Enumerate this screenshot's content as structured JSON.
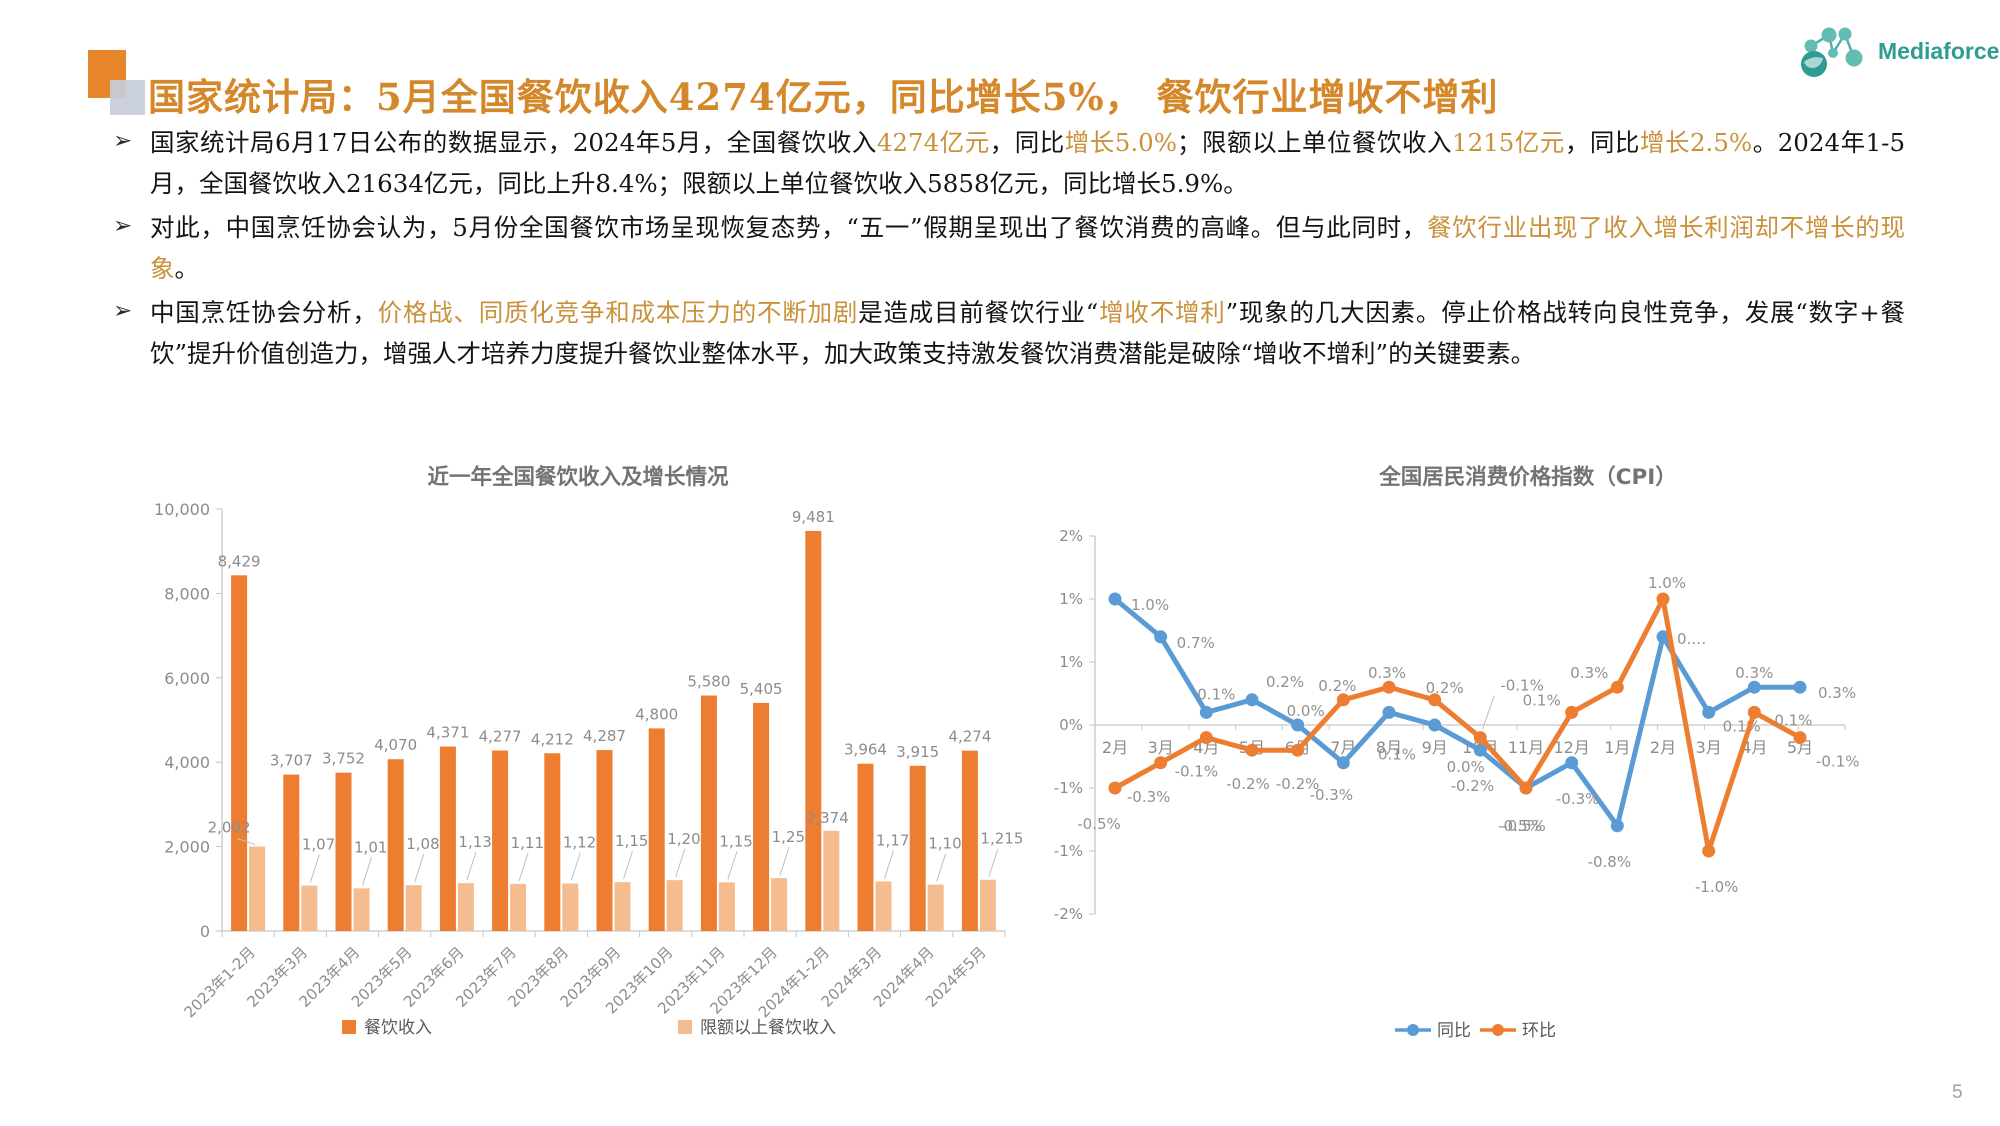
{
  "slide": {
    "page_number": "5"
  },
  "logo": {
    "text": "Mediaforce",
    "teal": "#2E9C92"
  },
  "header": {
    "title": "国家统计局：5月全国餐饮收入4274亿元，同比增长5%， 餐饮行业增收不增利"
  },
  "colors": {
    "accent_orange": "#D5882B",
    "text_highlight": "#C9913B",
    "bar_main": "#ED7D31",
    "bar_light": "#F5BD8F",
    "line_blue": "#5B9BD5",
    "line_orange": "#ED7D31",
    "chart_gray": "#8C8C8C"
  },
  "bullets": [
    {
      "segments": [
        {
          "t": "国家统计局6月17日公布的数据显示，2024年5月，全国餐饮收入",
          "hl": false
        },
        {
          "t": "4274亿元",
          "hl": true
        },
        {
          "t": "，同比",
          "hl": false
        },
        {
          "t": "增长5.0%",
          "hl": true
        },
        {
          "t": "；限额以上单位餐饮收入",
          "hl": false
        },
        {
          "t": "1215亿元",
          "hl": true
        },
        {
          "t": "，同比",
          "hl": false
        },
        {
          "t": "增长2.5%",
          "hl": true
        },
        {
          "t": "。2024年1-5月，全国餐饮收入21634亿元，同比上升8.4%；限额以上单位餐饮收入5858亿元，同比增长5.9%。",
          "hl": false
        }
      ]
    },
    {
      "segments": [
        {
          "t": "对此，中国烹饪协会认为，5月份全国餐饮市场呈现恢复态势，“五一”假期呈现出了餐饮消费的高峰。但与此同时，",
          "hl": false
        },
        {
          "t": "餐饮行业出现了收入增长利润却不增长的现象",
          "hl": true
        },
        {
          "t": "。",
          "hl": false
        }
      ]
    },
    {
      "segments": [
        {
          "t": "中国烹饪协会分析，",
          "hl": false
        },
        {
          "t": "价格战、同质化竞争和成本压力的不断加剧",
          "hl": true
        },
        {
          "t": "是造成目前餐饮行业“",
          "hl": false
        },
        {
          "t": "增收不增利",
          "hl": true
        },
        {
          "t": "”现象的几大因素。停止价格战转向良性竞争，发展“数字+餐饮”提升价值创造力，增强人才培养力度提升餐饮业整体水平，加大政策支持激发餐饮消费潜能是破除“增收不增利”的关键要素。",
          "hl": false
        }
      ]
    }
  ],
  "chart_data": [
    {
      "type": "bar",
      "title": "近一年全国餐饮收入及增长情况",
      "categories": [
        "2023年1-2月",
        "2023年3月",
        "2023年4月",
        "2023年5月",
        "2023年6月",
        "2023年7月",
        "2023年8月",
        "2023年9月",
        "2023年10月",
        "2023年11月",
        "2023年12月",
        "2024年1-2月",
        "2024年3月",
        "2024年4月",
        "2024年5月"
      ],
      "series": [
        {
          "name": "餐饮收入",
          "color": "#ED7D31",
          "values": [
            8429,
            3707,
            3752,
            4070,
            4371,
            4277,
            4212,
            4287,
            4800,
            5580,
            5405,
            9481,
            3964,
            3915,
            4274
          ],
          "labels": [
            "8,429",
            "3,707",
            "3,752",
            "4,070",
            "4,371",
            "4,277",
            "4,212",
            "4,287",
            "4,800",
            "5,580",
            "5,405",
            "9,481",
            "3,964",
            "3,915",
            "4,274"
          ]
        },
        {
          "name": "限额以上餐饮收入",
          "color": "#F5BD8F",
          "values": [
            2002,
            1077,
            1011,
            1085,
            1134,
            1117,
            1125,
            1158,
            1205,
            1152,
            1253,
            2374,
            1174,
            1100,
            1215
          ],
          "labels": [
            "2,002",
            "1,077",
            "1,011",
            "1,085",
            "1,134",
            "1,117",
            "1,125",
            "1,158",
            "1,205",
            "1,152",
            "1,253",
            "2,374",
            "1,174",
            "1,100",
            "1,215"
          ]
        }
      ],
      "ylim": [
        0,
        10000
      ],
      "yticks": [
        "0",
        "2,000",
        "4,000",
        "6,000",
        "8,000",
        "10,000"
      ],
      "grid": false,
      "legend_position": "bottom"
    },
    {
      "type": "line",
      "title": "全国居民消费价格指数（CPI）",
      "categories": [
        "2月",
        "3月",
        "4月",
        "5月",
        "6月",
        "7月",
        "8月",
        "9月",
        "10月",
        "11月",
        "12月",
        "1月",
        "2月",
        "3月",
        "4月",
        "5月"
      ],
      "series": [
        {
          "name": "同比",
          "color": "#5B9BD5",
          "values": [
            1.0,
            0.7,
            0.1,
            0.2,
            0.0,
            -0.3,
            0.1,
            0.0,
            -0.2,
            -0.5,
            -0.3,
            -0.8,
            0.7,
            0.1,
            0.3,
            0.3
          ],
          "labels": [
            "1.0%",
            "0.7%",
            "0.1%",
            "0.2%",
            "0.0%",
            "-0.3%",
            "0.1%",
            "0.0%",
            "-0.2%",
            "-0.5%",
            "-0.3%",
            "-0.8%",
            "0.…",
            "0.1%",
            "0.3%",
            "0.3%"
          ]
        },
        {
          "name": "环比",
          "color": "#ED7D31",
          "values": [
            -0.5,
            -0.3,
            -0.1,
            -0.2,
            -0.2,
            0.2,
            0.3,
            0.2,
            -0.1,
            -0.5,
            0.1,
            0.3,
            1.0,
            -1.0,
            0.1,
            -0.1
          ],
          "labels": [
            "-0.5%",
            "-0.3%",
            "-0.1%",
            "-0.2%",
            "-0.2%",
            "0.2%",
            "0.3%",
            "0.2%",
            "-0.1%",
            "-0.5%",
            "0.1%",
            "0.3%",
            "1.0%",
            "-1.0%",
            "0.1%",
            "-0.1%"
          ]
        }
      ],
      "ylim": [
        -1.5,
        1.5
      ],
      "yticks": [
        "2%",
        "1%",
        "1%",
        "0%",
        "-1%",
        "-1%",
        "-2%"
      ],
      "grid": false,
      "legend_position": "bottom"
    }
  ]
}
